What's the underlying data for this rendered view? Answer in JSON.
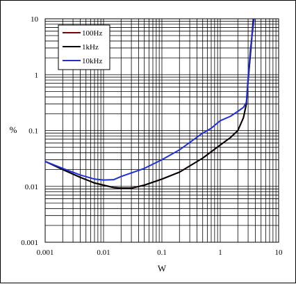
{
  "chart_data": {
    "type": "line",
    "title": "",
    "xlabel": "W",
    "ylabel": "%",
    "xscale": "log",
    "yscale": "log",
    "xlim": [
      0.001,
      10
    ],
    "ylim": [
      0.001,
      10
    ],
    "x_tick_labels": [
      "0.001",
      "0.01",
      "0.1",
      "1",
      "10"
    ],
    "y_tick_labels": [
      "0.001",
      "0.01",
      "0.1",
      "1",
      "10"
    ],
    "grid": true,
    "legend_position": "top-left",
    "series": [
      {
        "name": "100Hz",
        "color": "#7a0000",
        "points": [
          [
            0.001,
            0.028
          ],
          [
            0.002,
            0.02
          ],
          [
            0.004,
            0.0145
          ],
          [
            0.007,
            0.0115
          ],
          [
            0.01,
            0.0105
          ],
          [
            0.015,
            0.0095
          ],
          [
            0.02,
            0.0093
          ],
          [
            0.03,
            0.0093
          ],
          [
            0.05,
            0.0105
          ],
          [
            0.1,
            0.0135
          ],
          [
            0.2,
            0.018
          ],
          [
            0.5,
            0.032
          ],
          [
            1,
            0.055
          ],
          [
            1.5,
            0.075
          ],
          [
            2,
            0.1
          ],
          [
            2.5,
            0.17
          ],
          [
            2.8,
            0.3
          ],
          [
            3,
            0.8
          ],
          [
            3.3,
            2.5
          ],
          [
            3.7,
            10
          ]
        ]
      },
      {
        "name": "1kHz",
        "color": "#000000",
        "points": [
          [
            0.001,
            0.028
          ],
          [
            0.002,
            0.02
          ],
          [
            0.004,
            0.0145
          ],
          [
            0.007,
            0.0115
          ],
          [
            0.01,
            0.0105
          ],
          [
            0.015,
            0.0095
          ],
          [
            0.02,
            0.0093
          ],
          [
            0.03,
            0.0093
          ],
          [
            0.05,
            0.0105
          ],
          [
            0.1,
            0.0135
          ],
          [
            0.2,
            0.018
          ],
          [
            0.5,
            0.032
          ],
          [
            1,
            0.055
          ],
          [
            1.5,
            0.075
          ],
          [
            2,
            0.1
          ],
          [
            2.5,
            0.17
          ],
          [
            2.8,
            0.3
          ],
          [
            3,
            0.8
          ],
          [
            3.3,
            2.5
          ],
          [
            3.7,
            10
          ]
        ]
      },
      {
        "name": "10kHz",
        "color": "#1f2fd6",
        "points": [
          [
            0.001,
            0.028
          ],
          [
            0.002,
            0.021
          ],
          [
            0.004,
            0.016
          ],
          [
            0.007,
            0.0135
          ],
          [
            0.01,
            0.013
          ],
          [
            0.015,
            0.0132
          ],
          [
            0.02,
            0.015
          ],
          [
            0.05,
            0.021
          ],
          [
            0.1,
            0.03
          ],
          [
            0.2,
            0.045
          ],
          [
            0.5,
            0.09
          ],
          [
            0.7,
            0.11
          ],
          [
            1,
            0.15
          ],
          [
            1.5,
            0.18
          ],
          [
            2,
            0.22
          ],
          [
            2.5,
            0.26
          ],
          [
            2.8,
            0.32
          ],
          [
            3,
            0.9
          ],
          [
            3.3,
            3
          ],
          [
            3.8,
            10
          ]
        ]
      }
    ]
  }
}
